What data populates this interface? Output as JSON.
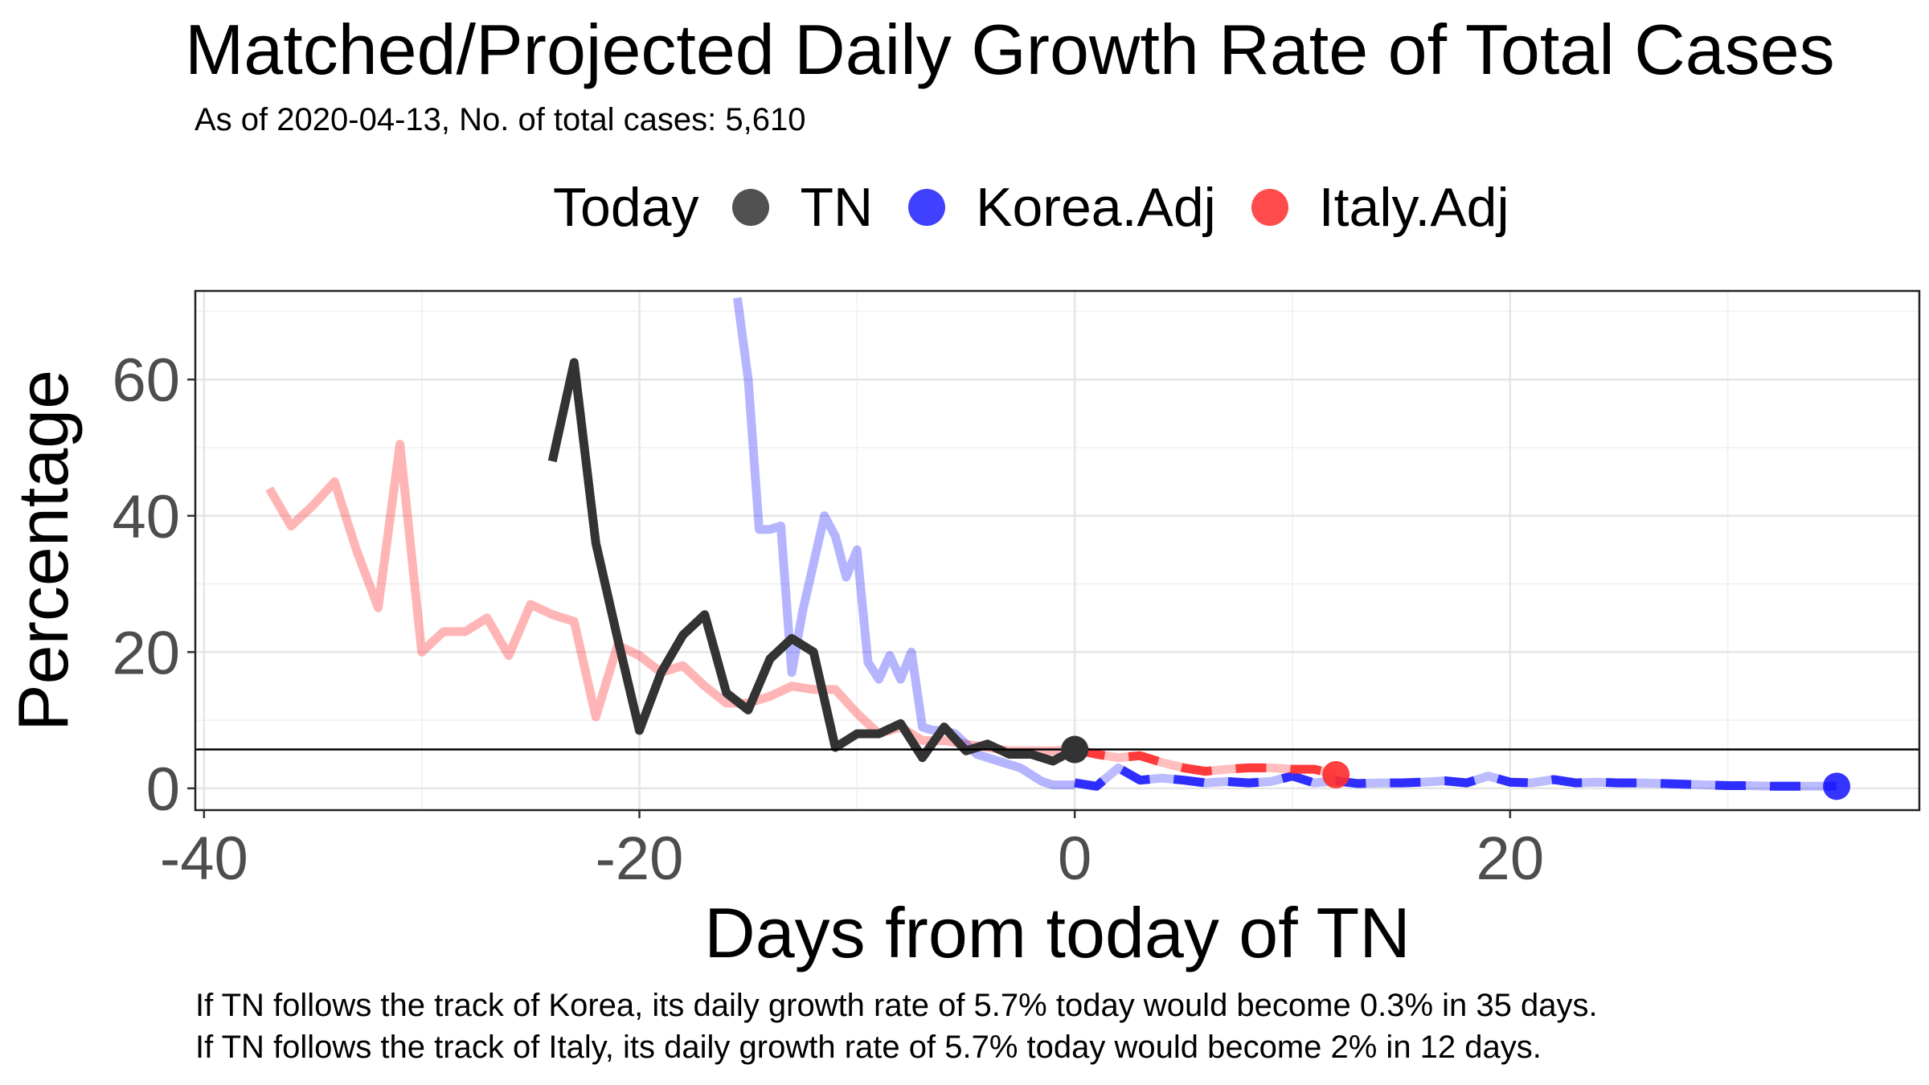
{
  "header": {
    "title": "Matched/Projected Daily Growth Rate of Total Cases",
    "subtitle": "As of 2020-04-13, No. of total cases: 5,610"
  },
  "legend": {
    "title": "Today",
    "items": [
      {
        "label": "TN",
        "color": "#333333"
      },
      {
        "label": "Korea.Adj",
        "color": "#1f1fff"
      },
      {
        "label": "Italy.Adj",
        "color": "#ff2b2b"
      }
    ]
  },
  "captions": [
    "If TN follows the track of Korea, its daily growth rate of 5.7% today would become 0.3% in 35 days.",
    "If TN follows the track of Italy, its daily growth rate of 5.7% today would become 2% in 12 days."
  ],
  "chart_data": {
    "type": "line",
    "xlabel": "Days from today of TN",
    "ylabel": "Percentage",
    "xlim": [
      -40.4,
      38.8
    ],
    "ylim": [
      -3.2,
      73
    ],
    "xticks": [
      -40,
      -20,
      0,
      20
    ],
    "yticks": [
      0,
      20,
      40,
      60
    ],
    "grid": true,
    "hline": 5.7,
    "series": [
      {
        "name": "TN",
        "color": "#333333",
        "x": [
          -24,
          -23,
          -22,
          -21,
          -20,
          -19,
          -18,
          -17,
          -16,
          -15,
          -14,
          -13,
          -12,
          -11,
          -10,
          -9,
          -8,
          -7,
          -6,
          -5,
          -4,
          -3,
          -2,
          -1,
          0
        ],
        "y": [
          48,
          62.5,
          36,
          22,
          8.5,
          17,
          22.5,
          25.5,
          14,
          11.5,
          19,
          22,
          20,
          6,
          8,
          8,
          9.5,
          4.5,
          9,
          5.5,
          6.5,
          5,
          5,
          4,
          5.7
        ],
        "end_marker": true
      },
      {
        "name": "Korea.Adj",
        "color": "#1f1fff",
        "x_hist": [
          -15.5,
          -15,
          -14.5,
          -14,
          -13.5,
          -13,
          -12.5,
          -12,
          -11.5,
          -11,
          -10.5,
          -10,
          -9.5,
          -9,
          -8.5,
          -8,
          -7.5,
          -7,
          -6.5,
          -6,
          -5.5,
          -5,
          -4.5,
          -4,
          -3.5,
          -3,
          -2.5,
          -2,
          -1.5,
          -1,
          -0.5,
          0
        ],
        "y_hist": [
          72,
          60,
          38,
          38,
          38.5,
          17,
          26,
          33,
          40,
          37,
          31,
          35,
          18.5,
          16,
          19.5,
          16,
          20,
          9,
          8.5,
          8.5,
          8,
          6.5,
          5,
          4.5,
          4,
          3.5,
          3,
          2,
          1,
          0.5,
          0.5,
          0.5
        ],
        "x_proj": [
          0,
          1,
          2,
          3,
          4,
          5,
          6,
          7,
          8,
          9,
          10,
          11,
          12,
          13,
          14,
          15,
          16,
          17,
          18,
          19,
          20,
          21,
          22,
          23,
          24,
          25,
          26,
          27,
          28,
          29,
          30,
          31,
          32,
          33,
          34,
          35
        ],
        "y_proj": [
          0.8,
          0.3,
          3,
          1.2,
          1.5,
          1.2,
          0.8,
          1,
          0.8,
          1,
          1.8,
          0.8,
          1.1,
          0.7,
          0.8,
          0.8,
          0.9,
          1.1,
          0.8,
          1.8,
          0.9,
          0.8,
          1.3,
          0.8,
          0.9,
          0.8,
          0.8,
          0.7,
          0.6,
          0.5,
          0.4,
          0.4,
          0.3,
          0.3,
          0.3,
          0.3
        ],
        "end_marker": true
      },
      {
        "name": "Italy.Adj",
        "color": "#ff2b2b",
        "x_hist": [
          -37,
          -36,
          -35,
          -34,
          -33,
          -32,
          -31,
          -30,
          -29,
          -28,
          -27,
          -26,
          -25,
          -24,
          -23,
          -22,
          -21,
          -20,
          -19,
          -18,
          -17,
          -16,
          -15,
          -14,
          -13,
          -12,
          -11,
          -10,
          -9,
          -8,
          -7,
          -6,
          -5,
          -4,
          -3,
          -2,
          -1,
          0
        ],
        "y_hist": [
          44,
          38.5,
          41.5,
          45,
          35,
          26.5,
          50.5,
          20,
          23,
          23,
          25,
          19.5,
          27,
          25.5,
          24.5,
          10.5,
          21,
          19.5,
          17,
          18,
          15,
          12.5,
          12.5,
          13.5,
          15,
          14.5,
          14.5,
          11,
          8,
          9,
          7,
          7,
          6.5,
          6,
          5.5,
          5.5,
          5.5,
          5.7
        ],
        "x_proj": [
          0,
          1,
          2,
          3,
          4,
          5,
          6,
          7,
          8,
          9,
          10,
          11,
          12
        ],
        "y_proj": [
          5.7,
          5,
          4.5,
          4.8,
          3.8,
          3,
          2.5,
          2.8,
          3,
          3,
          2.8,
          2.8,
          2
        ],
        "end_marker": true
      }
    ]
  }
}
